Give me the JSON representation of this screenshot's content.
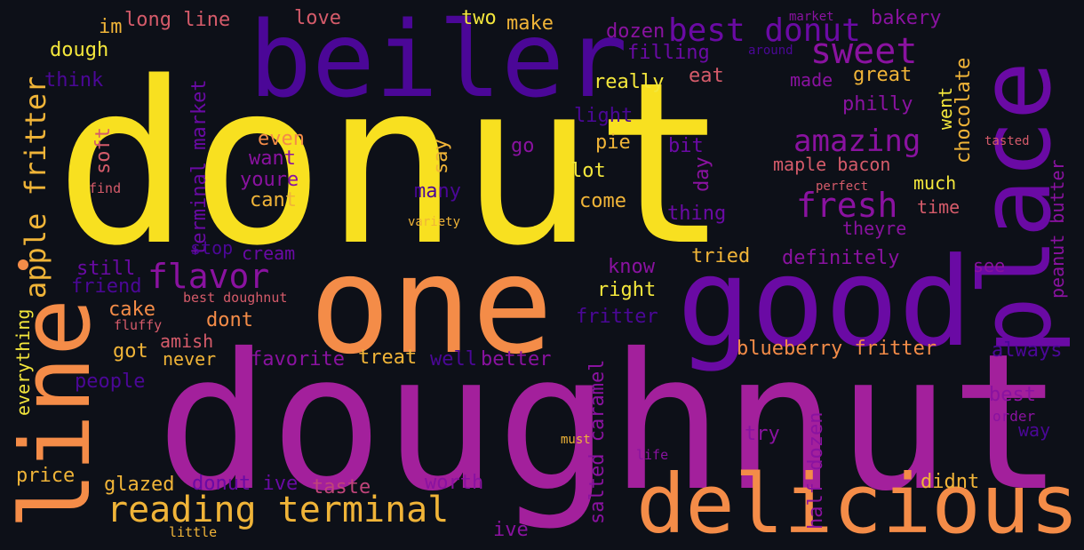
{
  "palette": {
    "yellow": "#f8e020",
    "light_yellow": "#f4e73c",
    "orange": "#f48c48",
    "gold": "#f0b438",
    "salmon": "#e47a60",
    "pink_red": "#d55b6a",
    "magenta": "#a3209c",
    "purple": "#8a12a0",
    "violet": "#6a0aa4",
    "indigo": "#4b0797",
    "deep_indigo": "#3c0b8a",
    "rose": "#c0447a"
  },
  "words": [
    {
      "text": "donut",
      "color": "#f8e020"
    },
    {
      "text": "doughnut",
      "color": "#a3209c"
    },
    {
      "text": "one",
      "color": "#f48c48"
    },
    {
      "text": "good",
      "color": "#6a0aa4"
    },
    {
      "text": "beiler",
      "color": "#4b0797"
    },
    {
      "text": "place",
      "color": "#6a0aa4"
    },
    {
      "text": "line",
      "color": "#f48c48"
    },
    {
      "text": "delicious",
      "color": "#f48c48"
    },
    {
      "text": "reading terminal",
      "color": "#f0b438"
    },
    {
      "text": "best donut",
      "color": "#6a0aa4"
    },
    {
      "text": "sweet",
      "color": "#8a12a0"
    },
    {
      "text": "apple fritter",
      "color": "#f0b438"
    },
    {
      "text": "amazing",
      "color": "#8a12a0"
    },
    {
      "text": "fresh",
      "color": "#8a12a0"
    },
    {
      "text": "flavor",
      "color": "#8a12a0"
    },
    {
      "text": "long line",
      "color": "#d55b6a"
    },
    {
      "text": "im",
      "color": "#f0b438"
    },
    {
      "text": "love",
      "color": "#d55b6a"
    },
    {
      "text": "two",
      "color": "#f4e73c"
    },
    {
      "text": "make",
      "color": "#f0b438"
    },
    {
      "text": "dozen",
      "color": "#8a12a0"
    },
    {
      "text": "market",
      "color": "#8a12a0"
    },
    {
      "text": "bakery",
      "color": "#8a12a0"
    },
    {
      "text": "dough",
      "color": "#f4e73c"
    },
    {
      "text": "think",
      "color": "#4b0797"
    },
    {
      "text": "filling",
      "color": "#6a0aa4"
    },
    {
      "text": "around",
      "color": "#4b0797"
    },
    {
      "text": "really",
      "color": "#f4e73c"
    },
    {
      "text": "eat",
      "color": "#d55b6a"
    },
    {
      "text": "made",
      "color": "#8a12a0"
    },
    {
      "text": "great",
      "color": "#f0b438"
    },
    {
      "text": "terminal market",
      "color": "#6a0aa4"
    },
    {
      "text": "light",
      "color": "#4b0797"
    },
    {
      "text": "philly",
      "color": "#8a12a0"
    },
    {
      "text": "went",
      "color": "#f4e73c"
    },
    {
      "text": "chocolate",
      "color": "#f0b438"
    },
    {
      "text": "soft",
      "color": "#d55b6a"
    },
    {
      "text": "even",
      "color": "#f48c48"
    },
    {
      "text": "want",
      "color": "#8a12a0"
    },
    {
      "text": "youre",
      "color": "#8a12a0"
    },
    {
      "text": "cant",
      "color": "#f0b438"
    },
    {
      "text": "find",
      "color": "#d55b6a"
    },
    {
      "text": "say",
      "color": "#f0b438"
    },
    {
      "text": "go",
      "color": "#8a12a0"
    },
    {
      "text": "pie",
      "color": "#f0b438"
    },
    {
      "text": "bit",
      "color": "#6a0aa4"
    },
    {
      "text": "lot",
      "color": "#f4e73c"
    },
    {
      "text": "day",
      "color": "#8a12a0"
    },
    {
      "text": "maple bacon",
      "color": "#d55b6a"
    },
    {
      "text": "tasted",
      "color": "#d55b6a"
    },
    {
      "text": "peanut butter",
      "color": "#8a12a0"
    },
    {
      "text": "perfect",
      "color": "#d55b6a"
    },
    {
      "text": "much",
      "color": "#f4e73c"
    },
    {
      "text": "many",
      "color": "#4b0797"
    },
    {
      "text": "come",
      "color": "#f0b438"
    },
    {
      "text": "thing",
      "color": "#6a0aa4"
    },
    {
      "text": "time",
      "color": "#d55b6a"
    },
    {
      "text": "variety",
      "color": "#f0b438"
    },
    {
      "text": "theyre",
      "color": "#8a12a0"
    },
    {
      "text": "stop",
      "color": "#4b0797"
    },
    {
      "text": "cream",
      "color": "#6a0aa4"
    },
    {
      "text": "tried",
      "color": "#f0b438"
    },
    {
      "text": "definitely",
      "color": "#8a12a0"
    },
    {
      "text": "still",
      "color": "#6a0aa4"
    },
    {
      "text": "friend",
      "color": "#4b0797"
    },
    {
      "text": "know",
      "color": "#8a12a0"
    },
    {
      "text": "see",
      "color": "#8a12a0"
    },
    {
      "text": "right",
      "color": "#f4e73c"
    },
    {
      "text": "best doughnut",
      "color": "#d55b6a"
    },
    {
      "text": "everything",
      "color": "#f4e73c"
    },
    {
      "text": "cake",
      "color": "#f48c48"
    },
    {
      "text": "fritter",
      "color": "#4b0797"
    },
    {
      "text": "fluffy",
      "color": "#d55b6a"
    },
    {
      "text": "dont",
      "color": "#f48c48"
    },
    {
      "text": "amish",
      "color": "#d55b6a"
    },
    {
      "text": "got",
      "color": "#f0b438"
    },
    {
      "text": "never",
      "color": "#f0b438"
    },
    {
      "text": "blueberry fritter",
      "color": "#f48c48"
    },
    {
      "text": "always",
      "color": "#4b0797"
    },
    {
      "text": "favorite",
      "color": "#8a12a0"
    },
    {
      "text": "treat",
      "color": "#f0b438"
    },
    {
      "text": "well",
      "color": "#4b0797"
    },
    {
      "text": "better",
      "color": "#8a12a0"
    },
    {
      "text": "people",
      "color": "#4b0797"
    },
    {
      "text": "best",
      "color": "#8a12a0"
    },
    {
      "text": "order",
      "color": "#8a12a0"
    },
    {
      "text": "way",
      "color": "#4b0797"
    },
    {
      "text": "try",
      "color": "#8a12a0"
    },
    {
      "text": "must",
      "color": "#f0b438"
    },
    {
      "text": "salted caramel",
      "color": "#8a12a0"
    },
    {
      "text": "half dozen",
      "color": "#8a12a0"
    },
    {
      "text": "life",
      "color": "#8a12a0"
    },
    {
      "text": "price",
      "color": "#f0b438"
    },
    {
      "text": "glazed",
      "color": "#f0b438"
    },
    {
      "text": "donut ive",
      "color": "#6a0aa4"
    },
    {
      "text": "taste",
      "color": "#c0447a"
    },
    {
      "text": "worth",
      "color": "#8a12a0"
    },
    {
      "text": "didnt",
      "color": "#f0b438"
    },
    {
      "text": "ive",
      "color": "#8a12a0"
    },
    {
      "text": "little",
      "color": "#f0b438"
    }
  ]
}
